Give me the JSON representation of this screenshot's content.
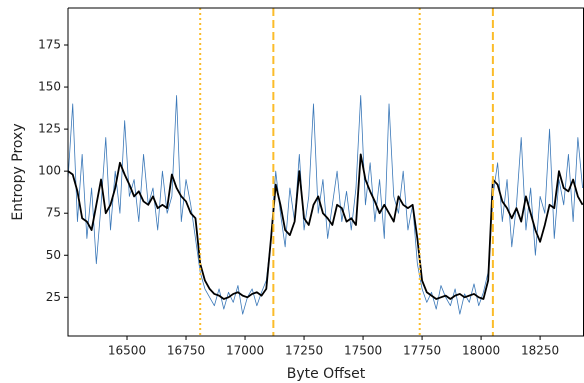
{
  "chart_data": {
    "type": "line",
    "xlabel": "Byte Offset",
    "ylabel": "Entropy Proxy",
    "x": [
      16250,
      16270,
      16290,
      16310,
      16330,
      16350,
      16370,
      16390,
      16410,
      16430,
      16450,
      16470,
      16490,
      16510,
      16530,
      16550,
      16570,
      16590,
      16610,
      16630,
      16650,
      16670,
      16690,
      16710,
      16730,
      16750,
      16770,
      16790,
      16810,
      16830,
      16850,
      16870,
      16890,
      16910,
      16930,
      16950,
      16970,
      16990,
      17010,
      17030,
      17050,
      17070,
      17090,
      17110,
      17130,
      17150,
      17170,
      17190,
      17210,
      17230,
      17250,
      17270,
      17290,
      17310,
      17330,
      17350,
      17370,
      17390,
      17410,
      17430,
      17450,
      17470,
      17490,
      17510,
      17530,
      17550,
      17570,
      17590,
      17610,
      17630,
      17650,
      17670,
      17690,
      17710,
      17730,
      17750,
      17770,
      17790,
      17810,
      17830,
      17850,
      17870,
      17890,
      17910,
      17930,
      17950,
      17970,
      17990,
      18010,
      18030,
      18050,
      18070,
      18090,
      18110,
      18130,
      18150,
      18170,
      18190,
      18210,
      18230,
      18250,
      18270,
      18290,
      18310,
      18330,
      18350,
      18370,
      18390,
      18410,
      18430
    ],
    "series": [
      {
        "color": "#3b78b8",
        "width": 0.8,
        "values": [
          95,
          140,
          70,
          110,
          60,
          90,
          45,
          80,
          120,
          65,
          100,
          75,
          130,
          85,
          95,
          70,
          110,
          80,
          90,
          65,
          100,
          75,
          85,
          145,
          70,
          95,
          80,
          60,
          40,
          30,
          25,
          20,
          30,
          18,
          28,
          22,
          32,
          15,
          25,
          30,
          20,
          28,
          35,
          60,
          100,
          75,
          55,
          90,
          70,
          110,
          65,
          85,
          140,
          75,
          95,
          60,
          80,
          100,
          70,
          88,
          65,
          90,
          145,
          80,
          105,
          70,
          95,
          60,
          140,
          85,
          75,
          100,
          65,
          80,
          45,
          30,
          22,
          28,
          18,
          32,
          25,
          20,
          30,
          15,
          27,
          22,
          33,
          20,
          28,
          40,
          85,
          105,
          70,
          95,
          55,
          80,
          120,
          65,
          90,
          50,
          85,
          75,
          125,
          60,
          95,
          80,
          110,
          70,
          120,
          90
        ]
      },
      {
        "color": "#000000",
        "width": 1.8,
        "values": [
          100,
          98,
          88,
          72,
          70,
          65,
          80,
          95,
          75,
          80,
          90,
          105,
          98,
          92,
          85,
          88,
          82,
          80,
          85,
          78,
          80,
          78,
          98,
          90,
          85,
          82,
          75,
          72,
          45,
          35,
          30,
          27,
          26,
          24,
          25,
          27,
          28,
          26,
          25,
          27,
          28,
          26,
          30,
          60,
          92,
          80,
          65,
          62,
          70,
          100,
          72,
          68,
          80,
          85,
          75,
          72,
          68,
          80,
          78,
          70,
          72,
          68,
          110,
          95,
          88,
          82,
          75,
          80,
          75,
          70,
          85,
          80,
          78,
          80,
          60,
          35,
          28,
          26,
          24,
          25,
          26,
          24,
          26,
          27,
          25,
          26,
          27,
          25,
          24,
          35,
          95,
          92,
          82,
          78,
          72,
          78,
          70,
          85,
          75,
          65,
          58,
          68,
          80,
          78,
          100,
          90,
          88,
          95,
          85,
          80
        ]
      }
    ],
    "vlines": [
      {
        "x": 16810,
        "style": "dotted"
      },
      {
        "x": 17120,
        "style": "dashed"
      },
      {
        "x": 17740,
        "style": "dotted"
      },
      {
        "x": 18050,
        "style": "dashed"
      }
    ],
    "vline_color": "#fbbc2a",
    "xlim": [
      16250,
      18436
    ],
    "ylim": [
      2,
      197
    ],
    "xticks": [
      16500,
      16750,
      17000,
      17250,
      17500,
      17750,
      18000,
      18250
    ],
    "yticks": [
      25,
      50,
      75,
      100,
      125,
      150,
      175
    ],
    "grid": false
  }
}
